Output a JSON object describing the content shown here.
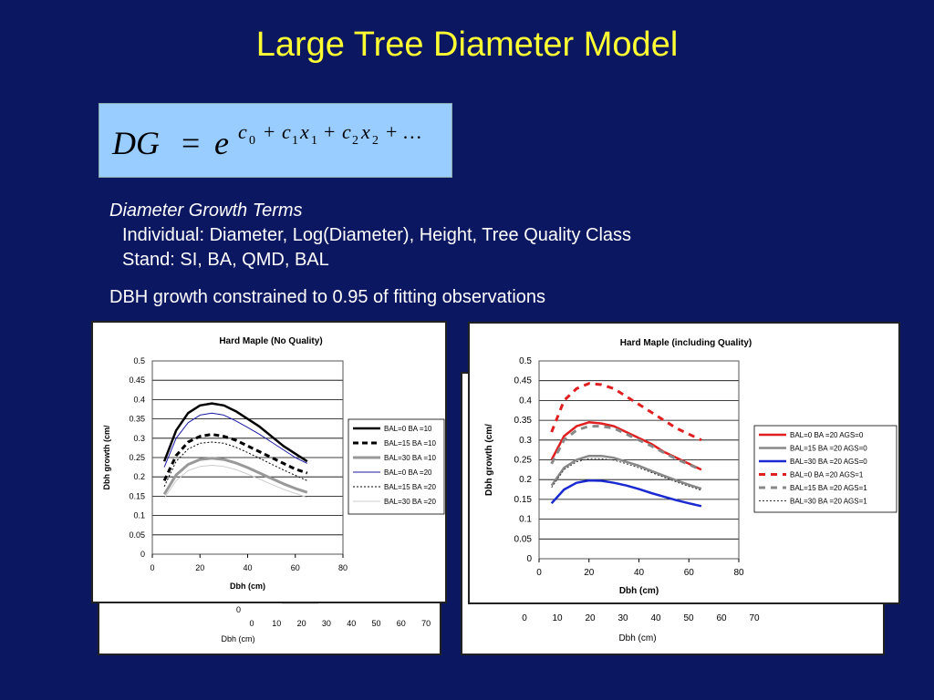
{
  "slide": {
    "title": "Large Tree Diameter Model",
    "terms_heading": "Diameter Growth Terms",
    "individual_terms": "Individual: Diameter, Log(Diameter), Height, Tree Quality Class",
    "stand_terms": "Stand: SI, BA, QMD, BAL",
    "constraint": "DBH growth constrained to 0.95 of fitting observations"
  },
  "formula": {
    "lhs": "DG",
    "equals": "=",
    "base": "e",
    "c0": "c",
    "c0_sub": "0",
    "plus1": "+",
    "c1": "c",
    "c1_sub": "1",
    "x1": "x",
    "x1_sub": "1",
    "plus2": "+",
    "c2": "c",
    "c2_sub": "2",
    "x2": "x",
    "x2_sub": "2",
    "tail": "+ …"
  },
  "background_charts": {
    "left_x_ticks": [
      "0",
      "10",
      "20",
      "30",
      "40",
      "50",
      "60",
      "70"
    ],
    "left_y_tick": "0",
    "left_xlabel": "Dbh (cm)",
    "right_x_ticks": [
      "0",
      "10",
      "20",
      "30",
      "40",
      "50",
      "60",
      "70"
    ],
    "right_xlabel": "Dbh (cm)"
  },
  "chart_data": [
    {
      "type": "line",
      "title": "Hard Maple (No Quality)",
      "xlabel": "Dbh (cm)",
      "ylabel": "Dbh growth (cm/",
      "xlim": [
        0,
        80
      ],
      "ylim": [
        0,
        0.5
      ],
      "x_ticks": [
        0,
        20,
        40,
        60,
        80
      ],
      "y_ticks": [
        "0",
        "0.05",
        "0.1",
        "0.15",
        "0.2",
        "0.25",
        "0.3",
        "0.35",
        "0.4",
        "0.45",
        "0.5"
      ],
      "grid": true,
      "legend_position": "right",
      "x": [
        5,
        10,
        15,
        20,
        25,
        30,
        35,
        40,
        45,
        50,
        55,
        60,
        65
      ],
      "series": [
        {
          "name": "BAL=0 BA =10",
          "color": "#000000",
          "width": 2.5,
          "dash": "",
          "values": [
            0.24,
            0.32,
            0.365,
            0.385,
            0.39,
            0.385,
            0.37,
            0.35,
            0.33,
            0.305,
            0.28,
            0.26,
            0.24
          ]
        },
        {
          "name": "BAL=15 BA =10",
          "color": "#000000",
          "width": 3,
          "dash": "6,4",
          "values": [
            0.19,
            0.255,
            0.29,
            0.305,
            0.31,
            0.305,
            0.295,
            0.28,
            0.265,
            0.25,
            0.235,
            0.22,
            0.21
          ]
        },
        {
          "name": "BAL=30 BA =10",
          "color": "#999999",
          "width": 3,
          "dash": "",
          "values": [
            0.155,
            0.205,
            0.232,
            0.245,
            0.248,
            0.245,
            0.236,
            0.224,
            0.21,
            0.196,
            0.182,
            0.17,
            0.16
          ]
        },
        {
          "name": "BAL=0 BA =20",
          "color": "#1a1aa6",
          "width": 1,
          "dash": "",
          "values": [
            0.225,
            0.3,
            0.34,
            0.36,
            0.365,
            0.36,
            0.345,
            0.328,
            0.31,
            0.29,
            0.27,
            0.25,
            0.235
          ]
        },
        {
          "name": "BAL=15 BA =20",
          "color": "#000000",
          "width": 1,
          "dash": "2,2",
          "values": [
            0.175,
            0.24,
            0.272,
            0.287,
            0.29,
            0.287,
            0.277,
            0.263,
            0.248,
            0.233,
            0.218,
            0.204,
            0.19
          ]
        },
        {
          "name": "BAL=30 BA =20",
          "color": "#cccccc",
          "width": 1,
          "dash": "",
          "values": [
            0.145,
            0.19,
            0.216,
            0.227,
            0.23,
            0.227,
            0.219,
            0.207,
            0.194,
            0.181,
            0.168,
            0.157,
            0.147
          ]
        }
      ]
    },
    {
      "type": "line",
      "title": "Hard Maple (including Quality)",
      "xlabel": "Dbh (cm)",
      "ylabel": "Dbh growth (cm/",
      "xlim": [
        0,
        80
      ],
      "ylim": [
        0,
        0.5
      ],
      "x_ticks": [
        0,
        20,
        40,
        60,
        80
      ],
      "y_ticks": [
        "0",
        "0.05",
        "0.1",
        "0.15",
        "0.2",
        "0.25",
        "0.3",
        "0.35",
        "0.4",
        "0.45",
        "0.5"
      ],
      "grid": true,
      "legend_position": "right",
      "x": [
        5,
        10,
        15,
        20,
        25,
        30,
        35,
        40,
        45,
        50,
        55,
        60,
        65
      ],
      "series": [
        {
          "name": "BAL=0 BA =20 AGS=0",
          "color": "#e02020",
          "width": 2.5,
          "dash": "",
          "values": [
            0.25,
            0.31,
            0.335,
            0.345,
            0.342,
            0.335,
            0.32,
            0.305,
            0.29,
            0.27,
            0.255,
            0.24,
            0.225
          ]
        },
        {
          "name": "BAL=15 BA =20 AGS=0",
          "color": "#888888",
          "width": 2.5,
          "dash": "",
          "values": [
            0.185,
            0.23,
            0.25,
            0.26,
            0.26,
            0.255,
            0.245,
            0.235,
            0.222,
            0.21,
            0.198,
            0.187,
            0.177
          ]
        },
        {
          "name": "BAL=30 BA =20 AGS=0",
          "color": "#1a2ad0",
          "width": 2.5,
          "dash": "",
          "values": [
            0.14,
            0.175,
            0.192,
            0.198,
            0.197,
            0.192,
            0.185,
            0.176,
            0.166,
            0.157,
            0.148,
            0.14,
            0.133
          ]
        },
        {
          "name": "BAL=0 BA =20 AGS=1",
          "color": "#e02020",
          "width": 3,
          "dash": "7,6",
          "values": [
            0.32,
            0.4,
            0.43,
            0.443,
            0.44,
            0.43,
            0.41,
            0.39,
            0.37,
            0.35,
            0.33,
            0.315,
            0.3
          ]
        },
        {
          "name": "BAL=15 BA =20 AGS=1",
          "color": "#888888",
          "width": 3,
          "dash": "7,6",
          "values": [
            0.24,
            0.3,
            0.325,
            0.335,
            0.335,
            0.33,
            0.315,
            0.3,
            0.285,
            0.268,
            0.252,
            0.238,
            0.225
          ]
        },
        {
          "name": "BAL=30 BA =20 AGS=1",
          "color": "#333333",
          "width": 1,
          "dash": "2,2",
          "values": [
            0.18,
            0.225,
            0.245,
            0.253,
            0.253,
            0.249,
            0.24,
            0.23,
            0.218,
            0.206,
            0.194,
            0.183,
            0.173
          ]
        }
      ]
    }
  ]
}
